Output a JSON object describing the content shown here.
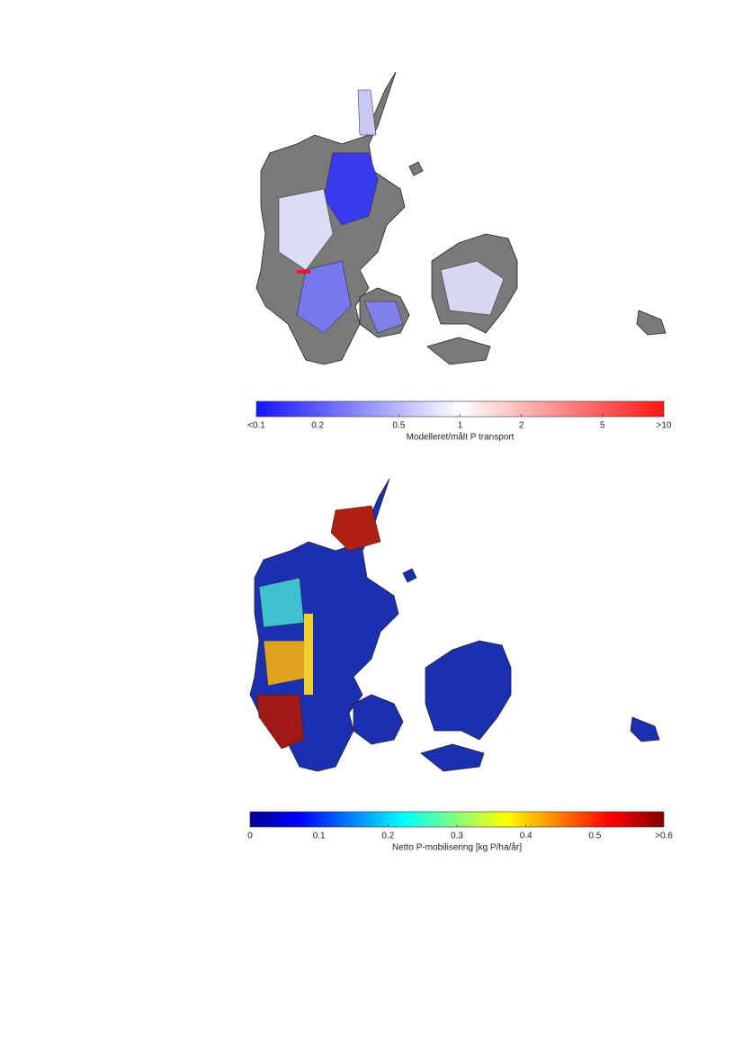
{
  "maps": [
    {
      "colorbar": {
        "label": "Modelleret/målt P transport",
        "scale": "log",
        "lim": [
          0.1,
          10
        ],
        "ticks": [
          {
            "value": 0.1,
            "label": "<0.1"
          },
          0.2,
          0.5,
          1,
          2,
          5,
          {
            "value": 10,
            "label": ">10"
          }
        ]
      }
    },
    {
      "colorbar": {
        "label": "Netto P-mobilisering [kg P/ha/år]",
        "scale": "linear",
        "lim": [
          0,
          0.6
        ],
        "ticks": [
          0,
          0.1,
          0.2,
          0.3,
          0.4,
          0.5,
          {
            "value": 0.6,
            "label": ">0.6"
          }
        ]
      }
    }
  ]
}
